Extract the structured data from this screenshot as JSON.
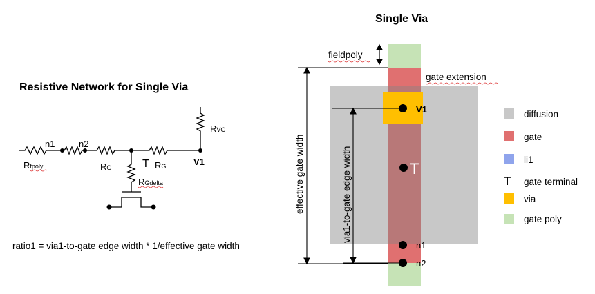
{
  "left": {
    "title": "Resistive Network for Single Via",
    "labels": {
      "n1": "n1",
      "n2": "n2",
      "rfpoly": "Rfpoly",
      "rg1": "RG",
      "rg2": "RG",
      "rvg": "RVG",
      "rgdelta": "RGdelta",
      "t": "T",
      "v1": "V1"
    },
    "equation": "ratio1 = via1-to-gate edge width * 1/effective gate width"
  },
  "right": {
    "title": "Single Via",
    "labels": {
      "fieldpoly": "fieldpoly",
      "gate_extension": "gate  extension",
      "effective_gate_width": "effective gate width",
      "via1_to_gate_edge_width": "via1-to-gate edge width",
      "v1": "V1",
      "t": "T",
      "n1": "n1",
      "n2": "n2"
    }
  },
  "legend": {
    "items": [
      {
        "label": "diffusion",
        "color": "#c8c8c8",
        "symbol": "swatch"
      },
      {
        "label": "gate",
        "color": "#e07070",
        "symbol": "swatch"
      },
      {
        "label": "li1",
        "color": "#8fa4ec",
        "symbol": "swatch"
      },
      {
        "label": "gate terminal",
        "color": "#000000",
        "symbol": "T"
      },
      {
        "label": "via",
        "color": "#ffbf00",
        "symbol": "swatch"
      },
      {
        "label": "gate poly",
        "color": "#c6e3b6",
        "symbol": "swatch"
      }
    ]
  }
}
